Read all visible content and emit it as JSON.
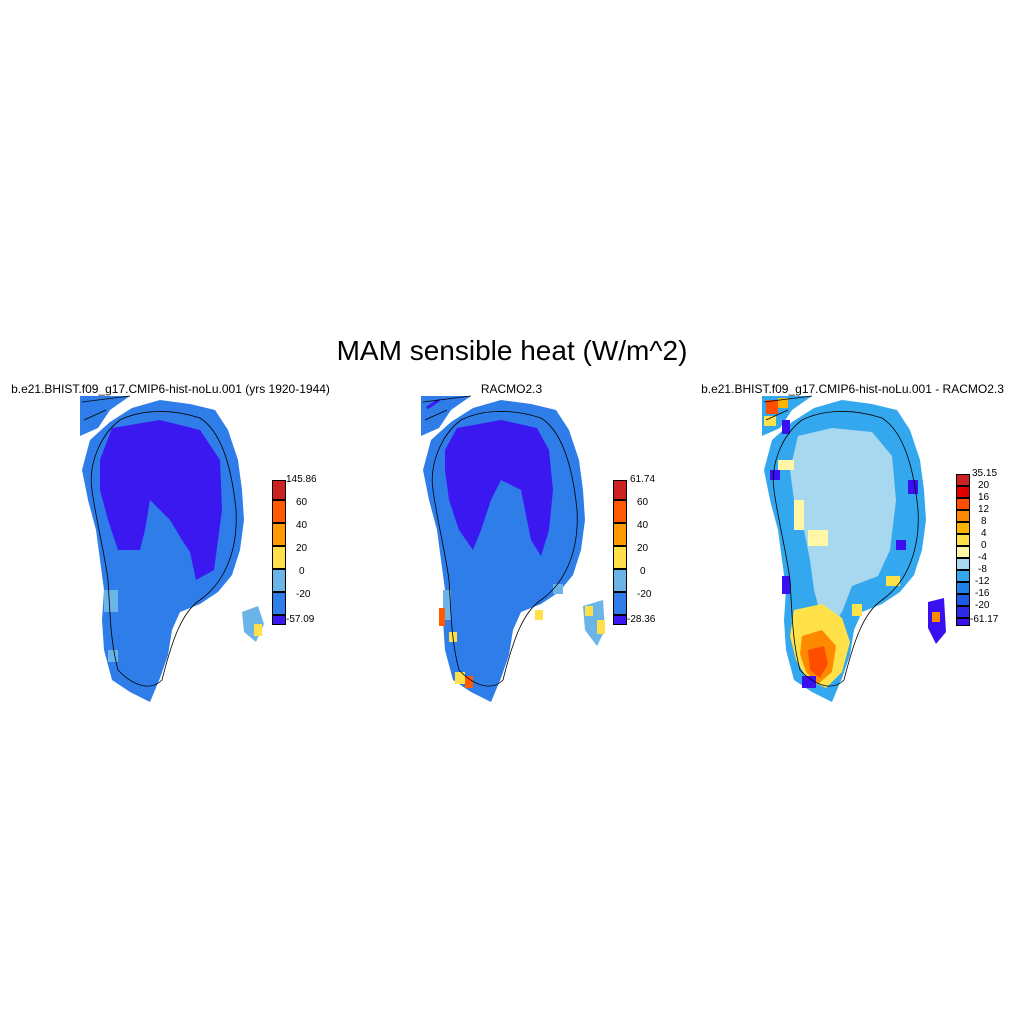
{
  "figure": {
    "title": "MAM sensible heat (W/m^2)"
  },
  "panels": [
    {
      "title": "b.e21.BHIST.f09_g17.CMIP6-hist-noLu.001 (yrs 1920-1944)",
      "colorbar": {
        "labels": [
          "145.86",
          "60",
          "40",
          "20",
          "0",
          "-20",
          "-57.09"
        ],
        "colors": [
          "#cc2222",
          "#ff5a00",
          "#ff9b00",
          "#ffe04a",
          "#6ab4e8",
          "#2e7de8",
          "#3b18f0"
        ]
      }
    },
    {
      "title": "RACMO2.3",
      "colorbar": {
        "labels": [
          "61.74",
          "60",
          "40",
          "20",
          "0",
          "-20",
          "-28.36"
        ],
        "colors": [
          "#cc2222",
          "#ff5a00",
          "#ff9b00",
          "#ffe04a",
          "#6ab4e8",
          "#2e7de8",
          "#3b18f0"
        ]
      }
    },
    {
      "title": "b.e21.BHIST.f09_g17.CMIP6-hist-noLu.001 - RACMO2.3",
      "colorbar": {
        "labels": [
          "35.15",
          "20",
          "16",
          "12",
          "8",
          "4",
          "0",
          "-4",
          "-8",
          "-12",
          "-16",
          "-20",
          "-61.17"
        ],
        "colors": [
          "#cc2222",
          "#e00000",
          "#ff4d00",
          "#ff8a00",
          "#ffb400",
          "#ffe24a",
          "#fff7a6",
          "#a8d8f0",
          "#34a8ee",
          "#1e82e6",
          "#1e5ae6",
          "#2a2ae8",
          "#3b10f0"
        ]
      }
    }
  ]
}
